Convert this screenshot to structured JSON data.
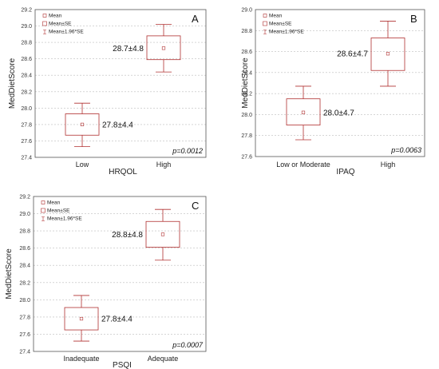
{
  "chart_data": [
    {
      "type": "box",
      "panel_label": "A",
      "xlabel": "HRQOL",
      "ylabel": "MedDietScore",
      "ylim": [
        27.4,
        29.2
      ],
      "yticks": [
        "27.4",
        "27.6",
        "27.8",
        "28.0",
        "28.2",
        "28.4",
        "28.6",
        "28.8",
        "29.0",
        "29.2"
      ],
      "categories": [
        "Low",
        "High"
      ],
      "mean": [
        27.8,
        28.73
      ],
      "se_low": [
        27.67,
        28.59
      ],
      "se_high": [
        27.93,
        28.88
      ],
      "ci_low": [
        27.53,
        28.44
      ],
      "ci_high": [
        28.06,
        29.02
      ],
      "annotations": [
        "27.8±4.4",
        "28.7±4.8"
      ],
      "p_value": "p=0.0012",
      "legend": [
        "Mean",
        "Mean±SE",
        "Mean±1.96*SE"
      ],
      "grid": true
    },
    {
      "type": "box",
      "panel_label": "B",
      "xlabel": "IPAQ",
      "ylabel": "MedDietScore",
      "ylim": [
        27.6,
        29.0
      ],
      "yticks": [
        "27.6",
        "27.8",
        "28.0",
        "28.2",
        "28.4",
        "28.6",
        "28.8",
        "29.0"
      ],
      "categories": [
        "Low or Moderate",
        "High"
      ],
      "mean": [
        28.02,
        28.58
      ],
      "se_low": [
        27.9,
        28.42
      ],
      "se_high": [
        28.15,
        28.73
      ],
      "ci_low": [
        27.76,
        28.27
      ],
      "ci_high": [
        28.27,
        28.89
      ],
      "annotations": [
        "28.0±4.7",
        "28.6±4.7"
      ],
      "p_value": "p=0.0063",
      "legend": [
        "Mean",
        "Mean±SE",
        "Mean±1.96*SE"
      ],
      "grid": true
    },
    {
      "type": "box",
      "panel_label": "C",
      "xlabel": "PSQI",
      "ylabel": "MedDietScore",
      "ylim": [
        27.4,
        29.2
      ],
      "yticks": [
        "27.4",
        "27.6",
        "27.8",
        "28.0",
        "28.2",
        "28.4",
        "28.6",
        "28.8",
        "29.0",
        "29.2"
      ],
      "categories": [
        "Inadequate",
        "Adequate"
      ],
      "mean": [
        27.78,
        28.76
      ],
      "se_low": [
        27.65,
        28.61
      ],
      "se_high": [
        27.91,
        28.91
      ],
      "ci_low": [
        27.52,
        28.46
      ],
      "ci_high": [
        28.05,
        29.05
      ],
      "annotations": [
        "27.8±4.4",
        "28.8±4.8"
      ],
      "p_value": "p=0.0007",
      "legend": [
        "Mean",
        "Mean±SE",
        "Mean±1.96*SE"
      ],
      "grid": true
    }
  ],
  "colors": {
    "box": "#b03030",
    "grid": "#bdbdbd",
    "frame": "#555555"
  }
}
